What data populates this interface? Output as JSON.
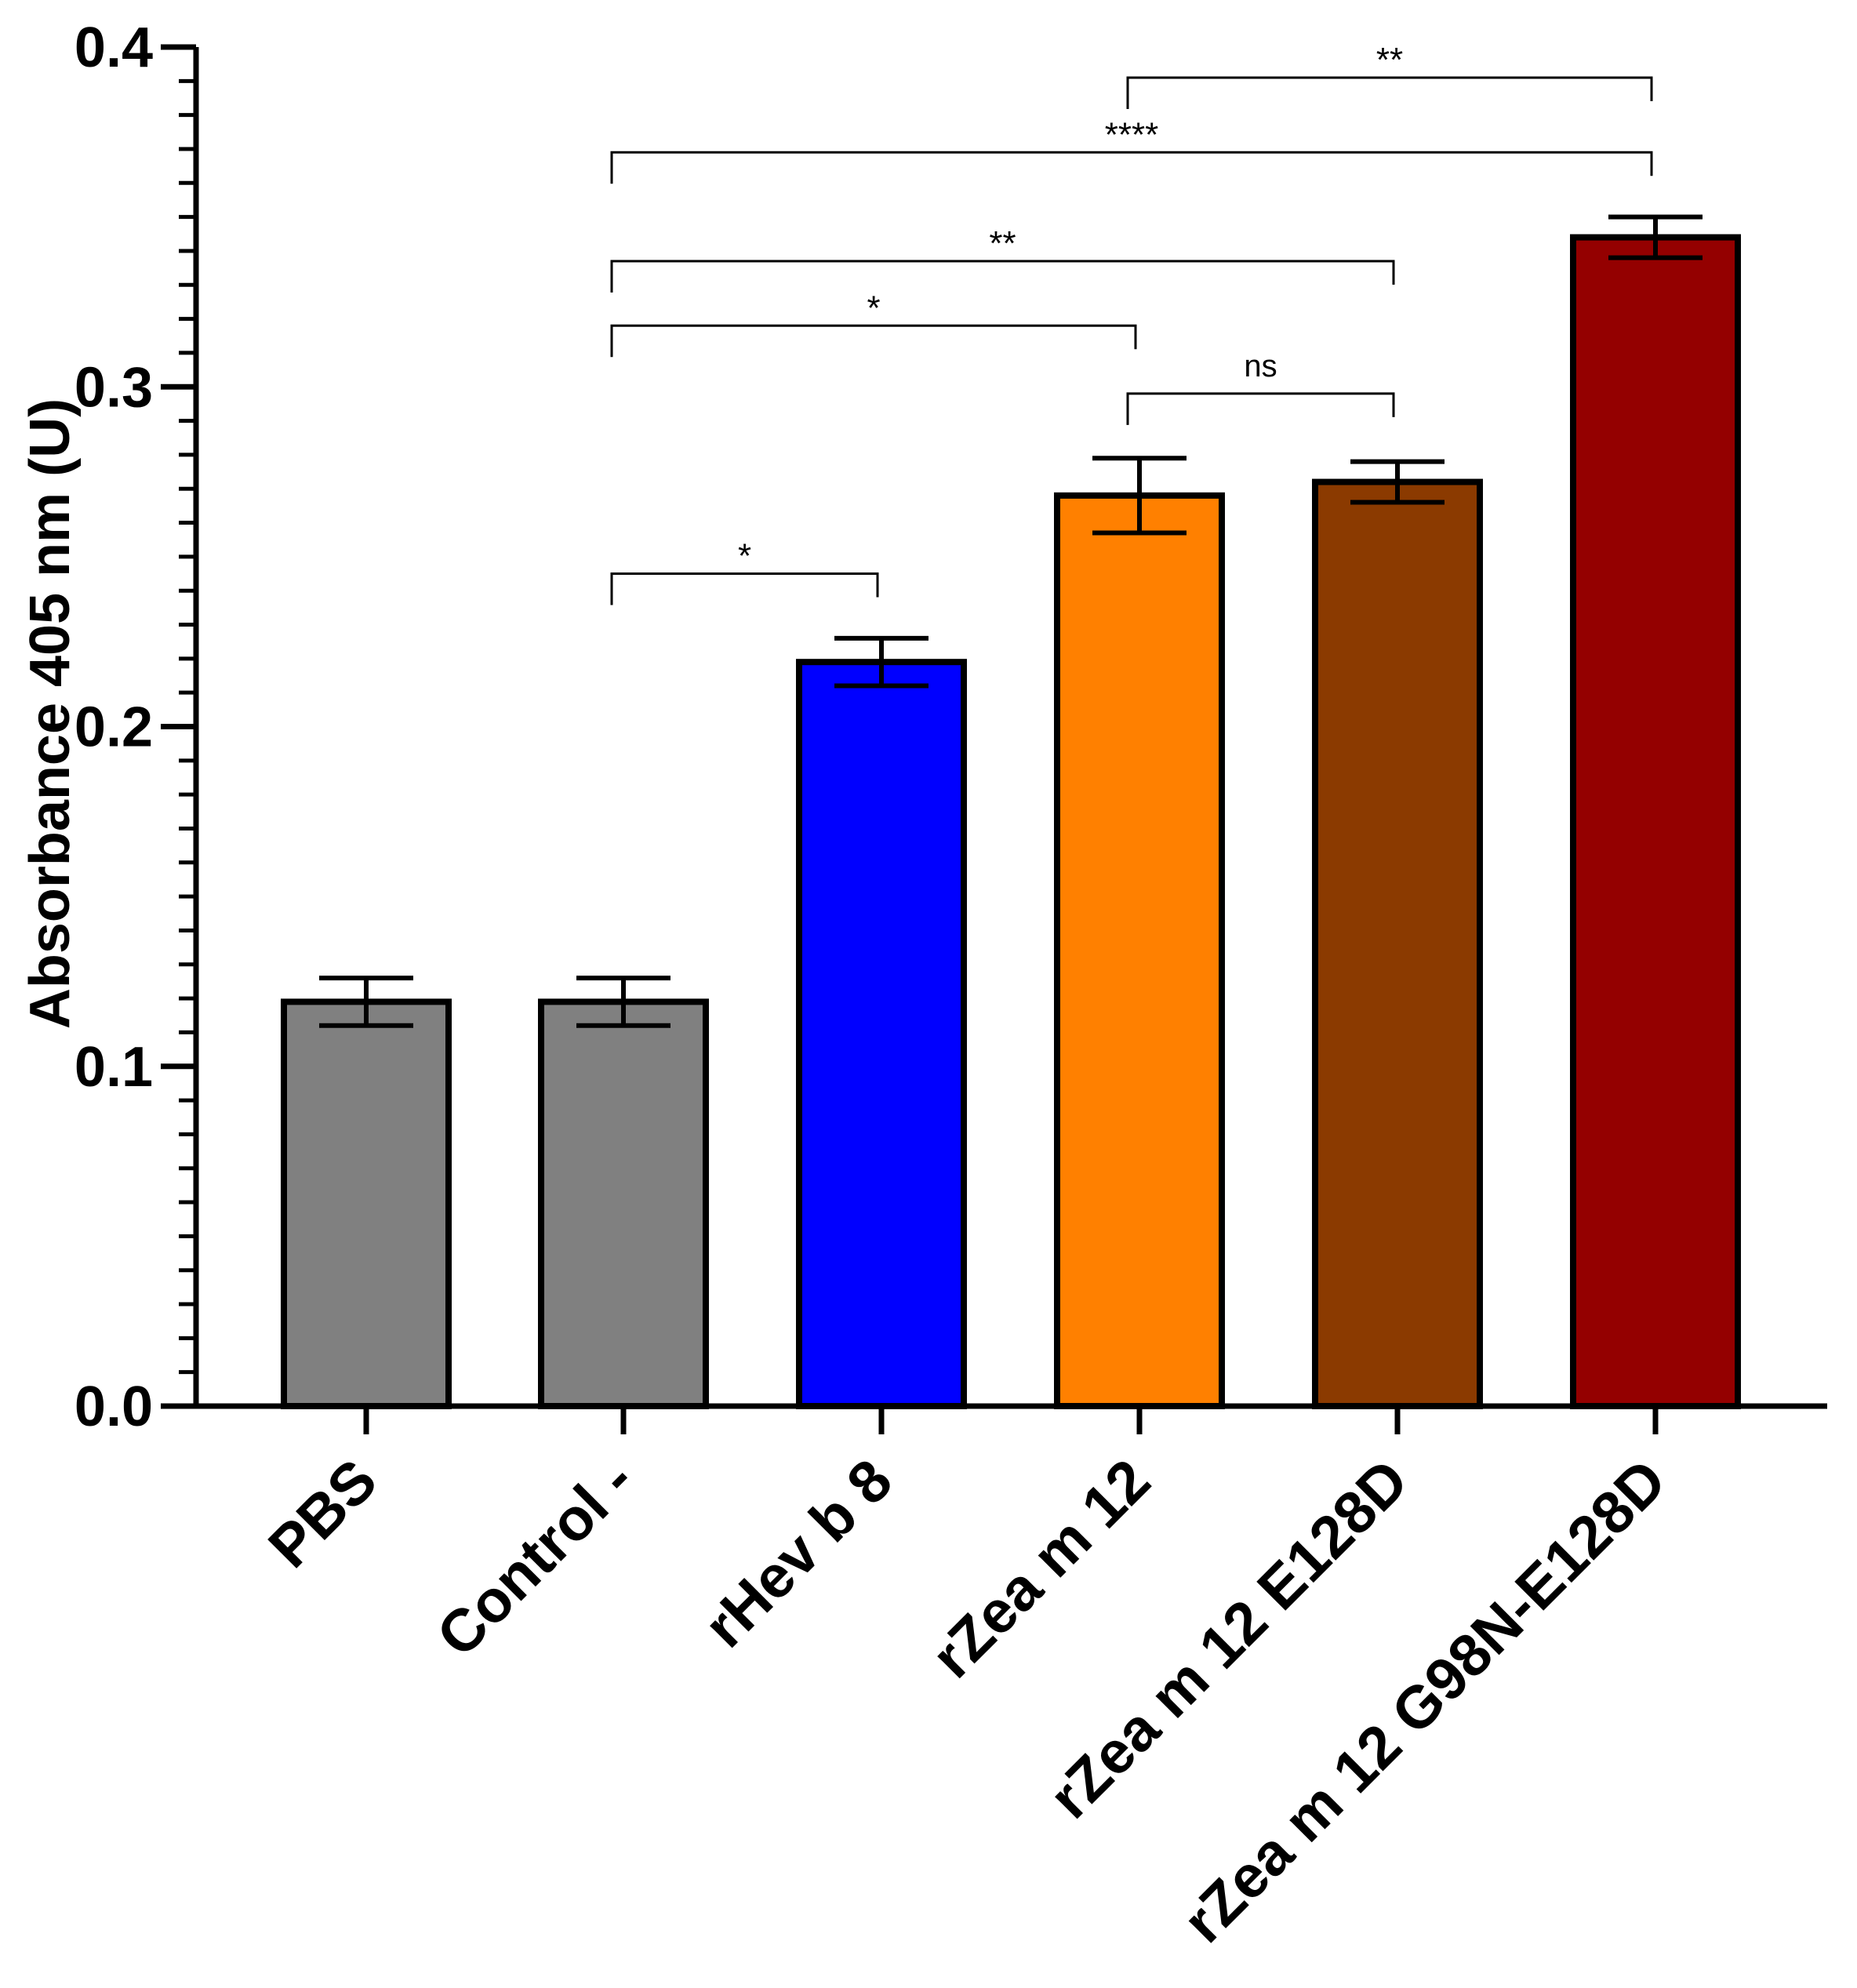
{
  "chart_data": {
    "type": "bar",
    "title": "",
    "xlabel": "",
    "ylabel": "Absorbance 405 nm (U)",
    "ylim": [
      0.0,
      0.4
    ],
    "yticks": [
      "0.0",
      "0.1",
      "0.2",
      "0.3",
      "0.4"
    ],
    "grid": false,
    "legend": "none",
    "categories": [
      "PBS",
      "Control -",
      "rHev b 8",
      "rZea m 12",
      "rZea m 12 E128D",
      "rZea m 12 G98N-E128D"
    ],
    "values": [
      0.119,
      0.119,
      0.219,
      0.268,
      0.272,
      0.344
    ],
    "errors": [
      0.007,
      0.007,
      0.007,
      0.011,
      0.006,
      0.006
    ],
    "colors": [
      "#808080",
      "#808080",
      "#0000ff",
      "#ff8000",
      "#8b3a00",
      "#940000"
    ],
    "significance": [
      {
        "from": 1,
        "to": 2,
        "label": "*",
        "y": 0.245
      },
      {
        "from": 3,
        "to": 4,
        "label": "ns",
        "y": 0.298
      },
      {
        "from": 1,
        "to": 3,
        "label": "*",
        "y": 0.318
      },
      {
        "from": 1,
        "to": 4,
        "label": "**",
        "y": 0.337
      },
      {
        "from": 1,
        "to": 5,
        "label": "****",
        "y": 0.369
      },
      {
        "from": 3,
        "to": 5,
        "label": "**",
        "y": 0.391
      }
    ]
  }
}
